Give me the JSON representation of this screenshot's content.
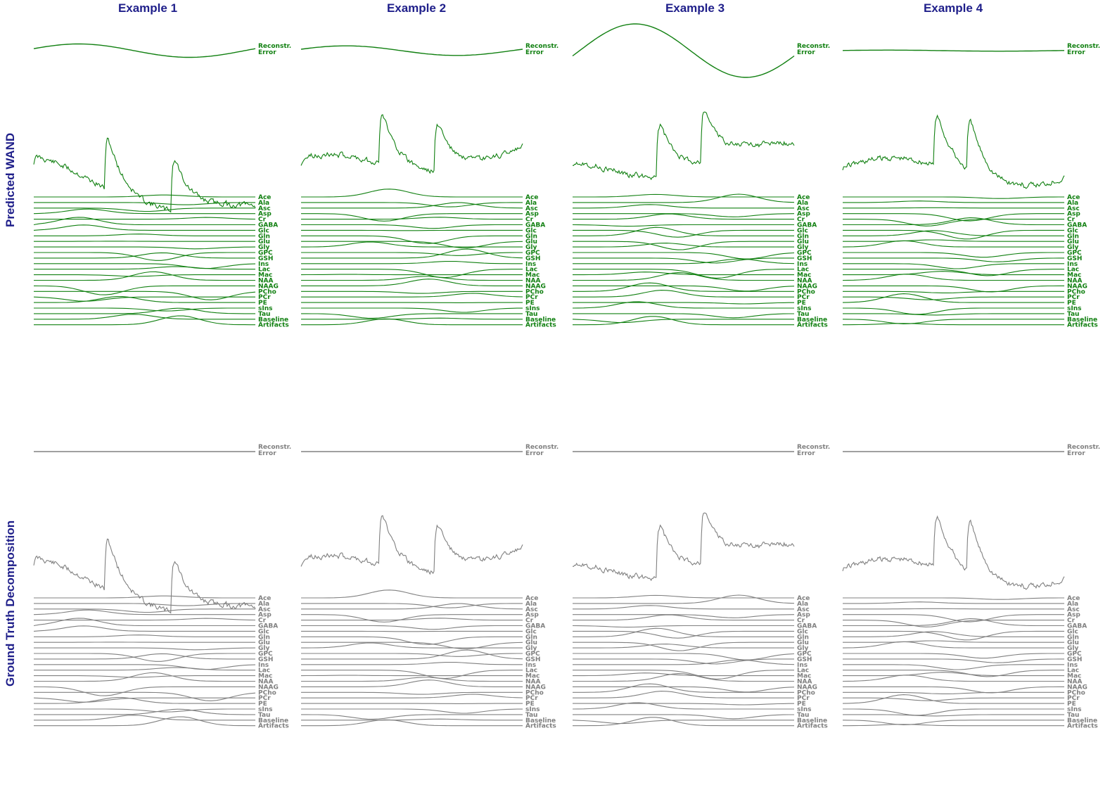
{
  "columns": [
    "Example 1",
    "Example 2",
    "Example 3",
    "Example 4"
  ],
  "rows": [
    "Predicted WAND",
    "Ground Truth Decomposition"
  ],
  "colors": {
    "title": "#1f1f8a",
    "predicted": "#118011",
    "ground_truth": "#808080",
    "input": "#111111"
  },
  "chart_data": {
    "type": "line",
    "description_labels": {
      "reconstruction_error": "Reconstr. Error",
      "components": [
        "Ace",
        "Ala",
        "Asc",
        "Asp",
        "Cr",
        "GABA",
        "Glc",
        "Gln",
        "Glu",
        "Gly",
        "GPC",
        "GSH",
        "Ins",
        "Lac",
        "Mac",
        "NAA",
        "NAAG",
        "PCho",
        "PCr",
        "PE",
        "sIns",
        "Tau",
        "Baseline",
        "Artifacts"
      ]
    },
    "panels": [
      {
        "example": "Example 1",
        "row": "Predicted WAND",
        "error_amplitude": 0.25,
        "seed": 11
      },
      {
        "example": "Example 2",
        "row": "Predicted WAND",
        "error_amplitude": 0.18,
        "seed": 23
      },
      {
        "example": "Example 3",
        "row": "Predicted WAND",
        "error_amplitude": 1.0,
        "seed": 37
      },
      {
        "example": "Example 4",
        "row": "Predicted WAND",
        "error_amplitude": 0.02,
        "seed": 41
      },
      {
        "example": "Example 1",
        "row": "Ground Truth Decomposition",
        "error_amplitude": 0,
        "seed": 11
      },
      {
        "example": "Example 2",
        "row": "Ground Truth Decomposition",
        "error_amplitude": 0,
        "seed": 23
      },
      {
        "example": "Example 3",
        "row": "Ground Truth Decomposition",
        "error_amplitude": 0,
        "seed": 37
      },
      {
        "example": "Example 4",
        "row": "Ground Truth Decomposition",
        "error_amplitude": 0,
        "seed": 41
      }
    ]
  }
}
